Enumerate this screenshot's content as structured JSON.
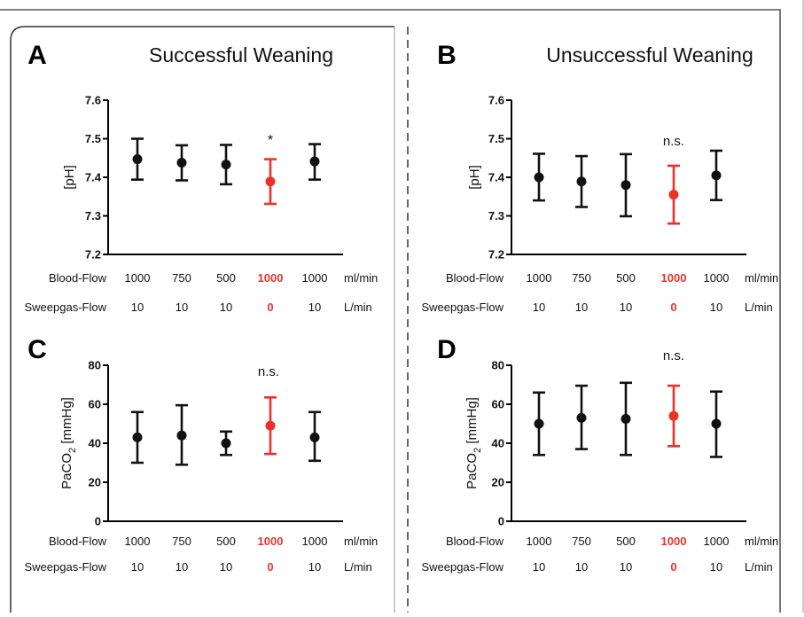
{
  "figure": {
    "colors": {
      "control": "#111111",
      "clamp": "#e8332a",
      "frame": "#333333"
    },
    "table_rows": [
      {
        "label": "Blood-Flow",
        "values": [
          "1000",
          "750",
          "500",
          "1000",
          "1000"
        ],
        "unit": "ml/min"
      },
      {
        "label": "Sweepgas-Flow",
        "values": [
          "10",
          "10",
          "10",
          "0",
          "10"
        ],
        "unit": "L/min"
      }
    ],
    "highlight_index": 3
  },
  "chart_data": [
    {
      "panel": "A",
      "title": "Successful Weaning",
      "type": "scatter",
      "ylabel": "[pH]",
      "ylabel_sub": "",
      "ylim": [
        7.2,
        7.6
      ],
      "yticks": [
        "7.2",
        "7.3",
        "7.4",
        "7.5",
        "7.6"
      ],
      "yticks_values": [
        7.2,
        7.3,
        7.4,
        7.5,
        7.6
      ],
      "annotation": "*",
      "series": [
        {
          "mean": [
            7.447,
            7.438,
            7.433,
            7.389,
            7.441
          ],
          "low": [
            7.394,
            7.392,
            7.382,
            7.331,
            7.394
          ],
          "high": [
            7.5,
            7.483,
            7.484,
            7.447,
            7.486
          ]
        }
      ]
    },
    {
      "panel": "B",
      "title": "Unsuccessful Weaning",
      "type": "scatter",
      "ylabel": "[pH]",
      "ylabel_sub": "",
      "ylim": [
        7.2,
        7.6
      ],
      "yticks": [
        "7.2",
        "7.3",
        "7.4",
        "7.5",
        "7.6"
      ],
      "yticks_values": [
        7.2,
        7.3,
        7.4,
        7.5,
        7.6
      ],
      "annotation": "n.s.",
      "series": [
        {
          "mean": [
            7.4,
            7.389,
            7.38,
            7.355,
            7.405
          ],
          "low": [
            7.34,
            7.323,
            7.299,
            7.28,
            7.341
          ],
          "high": [
            7.461,
            7.455,
            7.46,
            7.43,
            7.469
          ]
        }
      ]
    },
    {
      "panel": "C",
      "title": "",
      "type": "scatter",
      "ylabel": "PaCO",
      "ylabel_sub": "2",
      "ylabel_unit": " [mmHg]",
      "ylim": [
        0,
        80
      ],
      "yticks": [
        "0",
        "20",
        "40",
        "60",
        "80"
      ],
      "yticks_values": [
        0,
        20,
        40,
        60,
        80
      ],
      "annotation": "n.s.",
      "series": [
        {
          "mean": [
            43,
            44,
            40,
            49,
            43
          ],
          "low": [
            30,
            29,
            34,
            34.5,
            31
          ],
          "high": [
            56,
            59.5,
            46,
            63.5,
            56
          ]
        }
      ]
    },
    {
      "panel": "D",
      "title": "",
      "type": "scatter",
      "ylabel": "PaCO",
      "ylabel_sub": "2",
      "ylabel_unit": " [mmHg]",
      "ylim": [
        0,
        80
      ],
      "yticks": [
        "0",
        "20",
        "40",
        "60",
        "80"
      ],
      "yticks_values": [
        0,
        20,
        40,
        60,
        80
      ],
      "annotation": "n.s.",
      "series": [
        {
          "mean": [
            50,
            53,
            52.5,
            54,
            50
          ],
          "low": [
            34,
            37,
            34,
            38.5,
            33
          ],
          "high": [
            66,
            69.5,
            71,
            69.5,
            66.5
          ]
        }
      ]
    }
  ]
}
